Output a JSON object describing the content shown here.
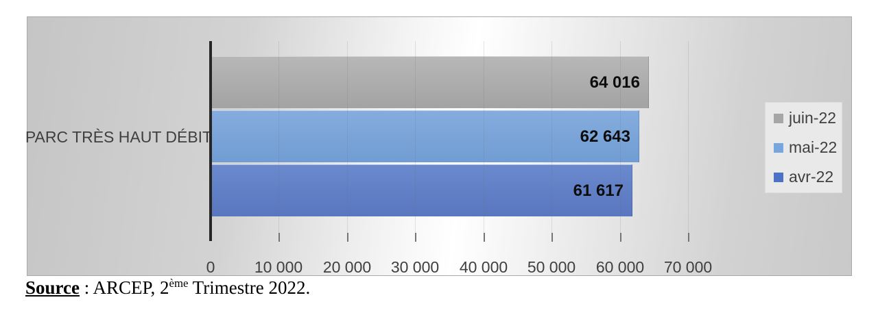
{
  "chart_data": {
    "type": "bar",
    "orientation": "horizontal",
    "title": "",
    "category": "PARC TRÈS HAUT DÉBIT",
    "series": [
      {
        "name": "juin-22",
        "value": 64016,
        "label": "64 016",
        "color_top": "#b7b7b7",
        "color_bottom": "#a3a3a3",
        "swatch_color": "#a6a6a6"
      },
      {
        "name": "mai-22",
        "value": 62643,
        "label": "62 643",
        "color_top": "#85acde",
        "color_bottom": "#709dd3",
        "swatch_color": "#77a5dd"
      },
      {
        "name": "avr-22",
        "value": 61617,
        "label": "61 617",
        "color_top": "#6a89cd",
        "color_bottom": "#5976bf",
        "swatch_color": "#4b72c4"
      }
    ],
    "x_axis": {
      "min": 0,
      "max": 70000,
      "tick_step": 10000,
      "ticks": [
        "0",
        "10 000",
        "20 000",
        "30 000",
        "40 000",
        "50 000",
        "60 000",
        "70 000"
      ]
    },
    "legend": {
      "position": "right",
      "entries": [
        "juin-22",
        "mai-22",
        "avr-22"
      ]
    },
    "gridlines": true,
    "colors": {
      "axis_line": "#262626",
      "text": "#3f3f3f",
      "data_label": "#0d0d0d"
    }
  },
  "source_note": {
    "label": "Source",
    "before_sup": " : ARCEP, 2",
    "sup": "ème",
    "after_sup": " Trimestre 2022."
  }
}
